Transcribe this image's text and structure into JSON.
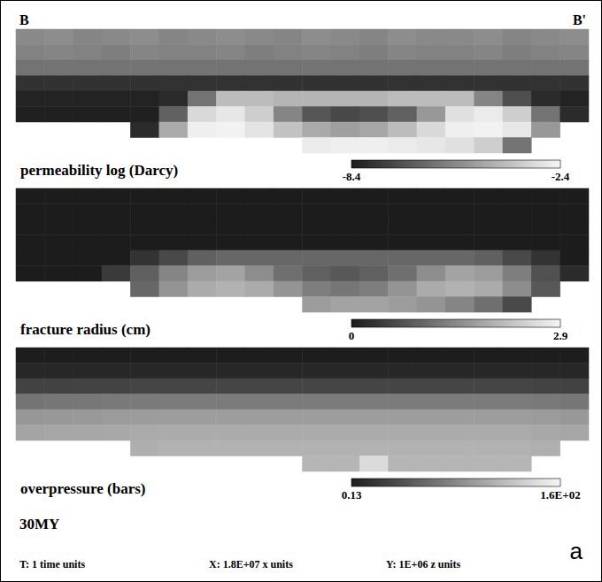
{
  "chart_data": {
    "type": "heatmap",
    "title": "30MY",
    "section_start": "B",
    "section_end": "B'",
    "panel_label": "a",
    "footer": [
      "T: 1 time units",
      "X: 1.8E+07 x units",
      "Y: 1E+06 z units"
    ],
    "panels": [
      {
        "title": "permeability log (Darcy)",
        "colorbar_range": [
          -8.4,
          -2.4
        ],
        "colorbar_ticks": [
          -8.4,
          -2.4
        ],
        "cells": [
          [
            -5.4,
            -5.3,
            -5.5,
            -5.4,
            -5.3,
            -5.5,
            -5.4,
            -5.3,
            -5.4,
            -5.5,
            -5.3,
            -5.4,
            -5.5,
            -5.3,
            -5.4,
            -5.4,
            -5.3,
            -5.5,
            -5.4,
            -5.3
          ],
          [
            -5.6,
            -5.5,
            -5.6,
            -5.7,
            -5.5,
            -5.6,
            -5.6,
            -5.5,
            -5.7,
            -5.6,
            -5.5,
            -5.6,
            -5.7,
            -5.5,
            -5.6,
            -5.6,
            -5.5,
            -5.7,
            -5.6,
            -5.5
          ],
          [
            -6.0,
            -6.0,
            -6.0,
            -6.0,
            -6.0,
            -6.0,
            -6.0,
            -6.0,
            -6.0,
            -6.0,
            -6.0,
            -6.0,
            -6.0,
            -6.0,
            -6.0,
            -6.0,
            -6.0,
            -6.0,
            -6.0,
            -6.0
          ],
          [
            -7.8,
            -7.8,
            -7.8,
            -7.8,
            -7.8,
            -7.8,
            -7.8,
            -7.8,
            -7.8,
            -7.8,
            -7.8,
            -7.8,
            -7.8,
            -7.8,
            -7.8,
            -7.8,
            -7.8,
            -7.8,
            -7.8,
            -7.8
          ],
          [
            -8.2,
            -8.2,
            -8.2,
            -8.2,
            -8.2,
            -8.0,
            -6.0,
            -4.0,
            -4.0,
            -4.2,
            -4.2,
            -4.2,
            -4.2,
            -4.0,
            -4.0,
            -4.0,
            -5.5,
            -7.0,
            -8.0,
            -8.2
          ],
          [
            -8.3,
            -8.3,
            -8.3,
            -8.3,
            -8.3,
            -6.5,
            -3.2,
            -2.8,
            -3.5,
            -5.5,
            -6.8,
            -7.2,
            -7.0,
            -6.5,
            -5.0,
            -3.0,
            -2.7,
            -3.5,
            -6.0,
            -8.0
          ],
          [
            null,
            null,
            null,
            null,
            -8.0,
            -4.5,
            -2.6,
            -2.5,
            -2.9,
            -3.8,
            -4.5,
            -4.8,
            -4.6,
            -4.0,
            -3.2,
            -2.6,
            -2.5,
            -2.8,
            -5.0,
            null
          ],
          [
            null,
            null,
            null,
            null,
            null,
            null,
            null,
            null,
            null,
            null,
            -2.7,
            -2.6,
            -2.6,
            -2.7,
            -2.8,
            -3.0,
            -3.5,
            -6.0,
            null,
            null
          ]
        ]
      },
      {
        "title": "fracture radius (cm)",
        "colorbar_range": [
          0,
          2.9
        ],
        "colorbar_ticks": [
          0,
          2.9
        ],
        "cells": [
          [
            0,
            0,
            0,
            0,
            0,
            0,
            0,
            0,
            0,
            0,
            0,
            0,
            0,
            0,
            0,
            0,
            0,
            0,
            0,
            0
          ],
          [
            0,
            0,
            0,
            0,
            0,
            0,
            0,
            0,
            0,
            0,
            0,
            0,
            0,
            0,
            0,
            0,
            0,
            0,
            0,
            0
          ],
          [
            0,
            0,
            0,
            0,
            0,
            0,
            0,
            0,
            0,
            0,
            0,
            0,
            0,
            0,
            0,
            0,
            0,
            0,
            0,
            0
          ],
          [
            0,
            0,
            0,
            0,
            0,
            0,
            0,
            0,
            0,
            0,
            0,
            0,
            0,
            0,
            0,
            0,
            0,
            0,
            0,
            0
          ],
          [
            0,
            0,
            0,
            0,
            0.3,
            0.6,
            0.9,
            1.0,
            1.0,
            1.0,
            1.0,
            1.0,
            1.0,
            1.0,
            1.0,
            1.0,
            0.9,
            0.6,
            0.3,
            0
          ],
          [
            0,
            0,
            0,
            0.4,
            0.9,
            1.4,
            1.7,
            1.8,
            1.5,
            1.1,
            0.9,
            0.8,
            0.9,
            1.1,
            1.5,
            1.8,
            1.7,
            1.3,
            0.7,
            0.2
          ],
          [
            null,
            null,
            null,
            null,
            1.0,
            1.6,
            1.9,
            2.0,
            1.9,
            1.6,
            1.3,
            1.2,
            1.3,
            1.6,
            1.9,
            2.0,
            1.9,
            1.5,
            0.8,
            null
          ],
          [
            null,
            null,
            null,
            null,
            null,
            null,
            null,
            null,
            null,
            null,
            1.7,
            1.8,
            1.8,
            1.7,
            1.6,
            1.4,
            1.1,
            0.6,
            null,
            null
          ]
        ]
      },
      {
        "title": "overpressure (bars)",
        "colorbar_range": [
          0.13,
          160
        ],
        "colorbar_ticks": [
          0.13,
          {
            "value": 160,
            "label": "1.6E+02"
          }
        ],
        "cells": [
          [
            1,
            1,
            1,
            1,
            1,
            1,
            1,
            1,
            1,
            1,
            1,
            1,
            1,
            1,
            1,
            1,
            1,
            1,
            1,
            1
          ],
          [
            8,
            8,
            8,
            8,
            8,
            8,
            8,
            8,
            8,
            8,
            8,
            8,
            8,
            8,
            8,
            8,
            8,
            8,
            8,
            8
          ],
          [
            28,
            28,
            29,
            29,
            30,
            30,
            30,
            30,
            30,
            30,
            30,
            30,
            30,
            30,
            30,
            30,
            30,
            30,
            29,
            28
          ],
          [
            65,
            66,
            67,
            68,
            69,
            70,
            70,
            70,
            70,
            70,
            70,
            70,
            70,
            70,
            70,
            70,
            70,
            70,
            68,
            66
          ],
          [
            90,
            91,
            92,
            93,
            94,
            95,
            95,
            95,
            95,
            95,
            95,
            95,
            95,
            95,
            95,
            95,
            95,
            95,
            93,
            91
          ],
          [
            100,
            101,
            102,
            103,
            104,
            105,
            105,
            105,
            105,
            105,
            105,
            105,
            105,
            105,
            105,
            105,
            105,
            105,
            103,
            101
          ],
          [
            null,
            null,
            null,
            null,
            108,
            110,
            110,
            110,
            110,
            110,
            110,
            110,
            110,
            110,
            110,
            110,
            110,
            110,
            108,
            null
          ],
          [
            null,
            null,
            null,
            null,
            null,
            null,
            null,
            null,
            null,
            null,
            112,
            112,
            140,
            112,
            112,
            112,
            112,
            112,
            null,
            null
          ]
        ]
      }
    ]
  }
}
